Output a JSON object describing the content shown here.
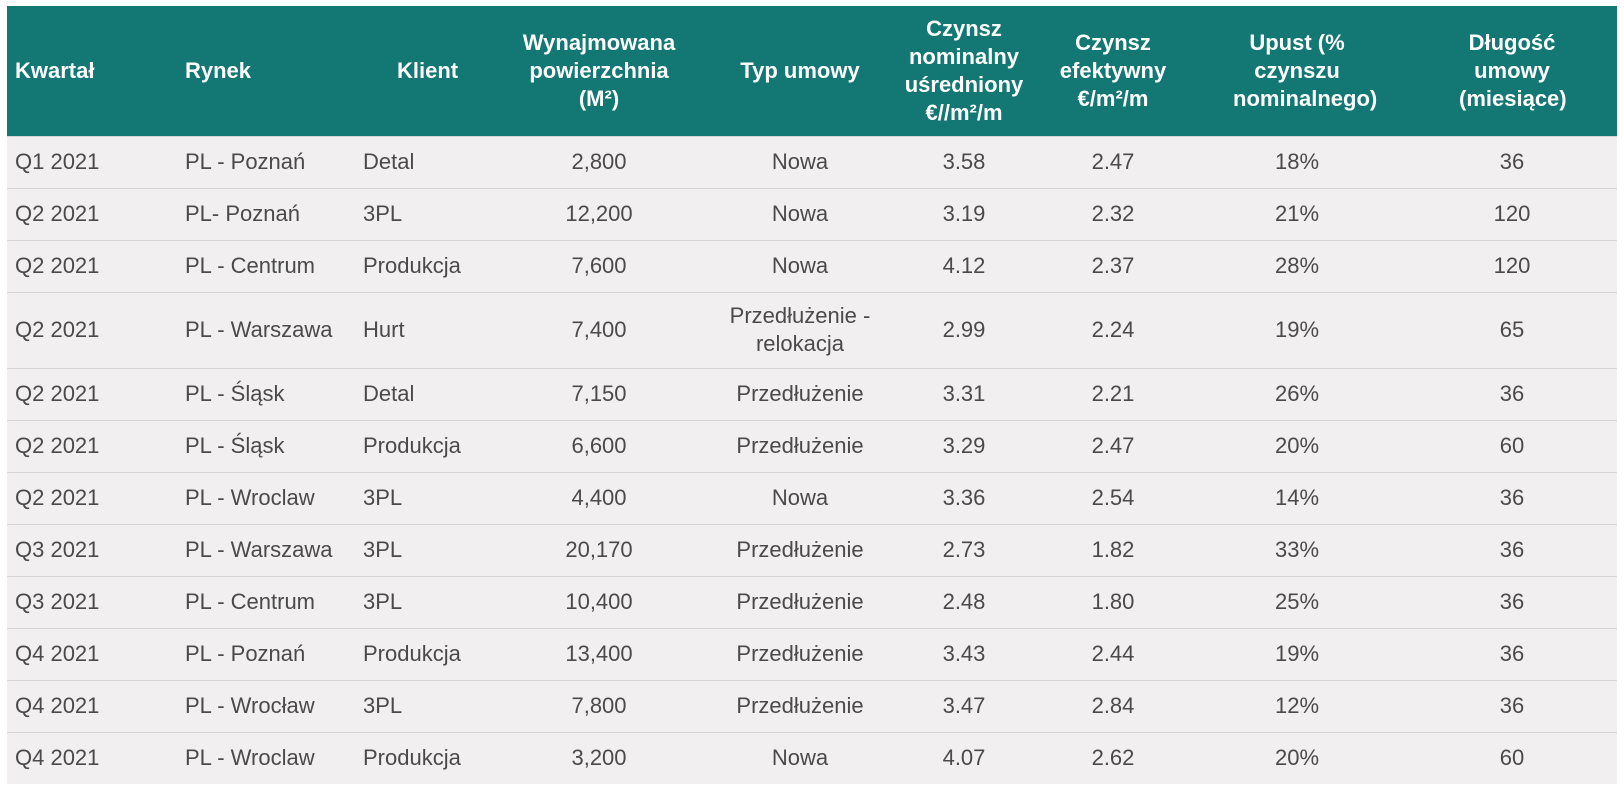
{
  "table": {
    "headers": [
      "Kwartał",
      "Rynek",
      "Klient",
      "Wynajmowana powierzchnia (M²)",
      "Typ umowy",
      "Czynsz nominalny uśredniony €//m²/m",
      "Czynsz efektywny €/m²/m",
      "Upust (% czynszu nominalnego)",
      "Długość umowy (miesiące)"
    ],
    "rows": [
      [
        "Q1 2021",
        "PL - Poznań",
        "Detal",
        "2,800",
        "Nowa",
        "3.58",
        "2.47",
        "18%",
        "36"
      ],
      [
        "Q2 2021",
        "PL- Poznań",
        "3PL",
        "12,200",
        "Nowa",
        "3.19",
        "2.32",
        "21%",
        "120"
      ],
      [
        "Q2 2021",
        "PL - Centrum",
        "Produkcja",
        "7,600",
        "Nowa",
        "4.12",
        "2.37",
        "28%",
        "120"
      ],
      [
        "Q2 2021",
        "PL - Warszawa",
        "Hurt",
        "7,400",
        "Przedłużenie - relokacja",
        "2.99",
        "2.24",
        "19%",
        "65"
      ],
      [
        "Q2 2021",
        "PL - Śląsk",
        "Detal",
        "7,150",
        "Przedłużenie",
        "3.31",
        "2.21",
        "26%",
        "36"
      ],
      [
        "Q2 2021",
        "PL - Śląsk",
        "Produkcja",
        "6,600",
        "Przedłużenie",
        "3.29",
        "2.47",
        "20%",
        "60"
      ],
      [
        "Q2 2021",
        "PL - Wroclaw",
        "3PL",
        "4,400",
        "Nowa",
        "3.36",
        "2.54",
        "14%",
        "36"
      ],
      [
        "Q3 2021",
        "PL - Warszawa",
        "3PL",
        "20,170",
        "Przedłużenie",
        "2.73",
        "1.82",
        "33%",
        "36"
      ],
      [
        "Q3 2021",
        "PL - Centrum",
        "3PL",
        "10,400",
        "Przedłużenie",
        "2.48",
        "1.80",
        "25%",
        "36"
      ],
      [
        "Q4 2021",
        "PL - Poznań",
        "Produkcja",
        "13,400",
        "Przedłużenie",
        "3.43",
        "2.44",
        "19%",
        "36"
      ],
      [
        "Q4 2021",
        "PL - Wrocław",
        "3PL",
        "7,800",
        "Przedłużenie",
        "3.47",
        "2.84",
        "12%",
        "36"
      ],
      [
        "Q4 2021",
        "PL - Wroclaw",
        "Produkcja",
        "3,200",
        "Nowa",
        "4.07",
        "2.62",
        "20%",
        "60"
      ]
    ]
  },
  "colors": {
    "header_bg": "#137873",
    "header_text": "#ffffff",
    "row_bg": "#f1eff0",
    "row_text": "#4a4a4a",
    "row_border": "#d6d4d5"
  }
}
